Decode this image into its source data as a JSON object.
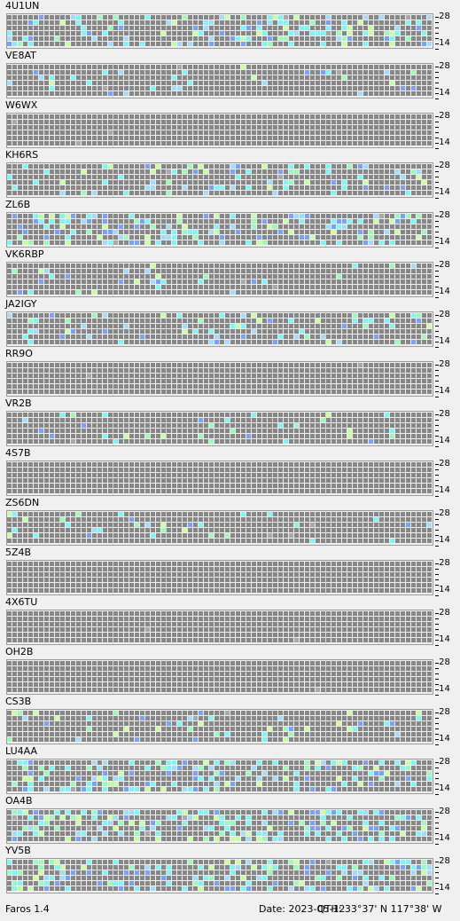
{
  "app": {
    "name": "Faros 1.4"
  },
  "status": {
    "date": "Date: 2023-05-12",
    "qth": "QTH: 33°37' N  117°38' W"
  },
  "axis": {
    "top_label": "28",
    "bottom_label": "14"
  },
  "palette": {
    "empty": "#878787",
    "gray": "#a8a8a8",
    "cyan": "#7cf7f7",
    "green": "#98fbb8",
    "lime": "#c8ffa0",
    "blue": "#7aa0ff",
    "lightblue": "#a0dcff"
  },
  "beacons": [
    {
      "callsign": "4U1UN",
      "activity": "high"
    },
    {
      "callsign": "VE8AT",
      "activity": "low"
    },
    {
      "callsign": "W6WX",
      "activity": "none"
    },
    {
      "callsign": "KH6RS",
      "activity": "medium"
    },
    {
      "callsign": "ZL6B",
      "activity": "high"
    },
    {
      "callsign": "VK6RBP",
      "activity": "low"
    },
    {
      "callsign": "JA2IGY",
      "activity": "medium"
    },
    {
      "callsign": "RR9O",
      "activity": "none"
    },
    {
      "callsign": "VR2B",
      "activity": "low"
    },
    {
      "callsign": "4S7B",
      "activity": "none"
    },
    {
      "callsign": "ZS6DN",
      "activity": "low"
    },
    {
      "callsign": "5Z4B",
      "activity": "none"
    },
    {
      "callsign": "4X6TU",
      "activity": "none"
    },
    {
      "callsign": "OH2B",
      "activity": "none"
    },
    {
      "callsign": "CS3B",
      "activity": "medium"
    },
    {
      "callsign": "LU4AA",
      "activity": "high"
    },
    {
      "callsign": "OA4B",
      "activity": "high"
    },
    {
      "callsign": "YV5B",
      "activity": "high"
    }
  ]
}
